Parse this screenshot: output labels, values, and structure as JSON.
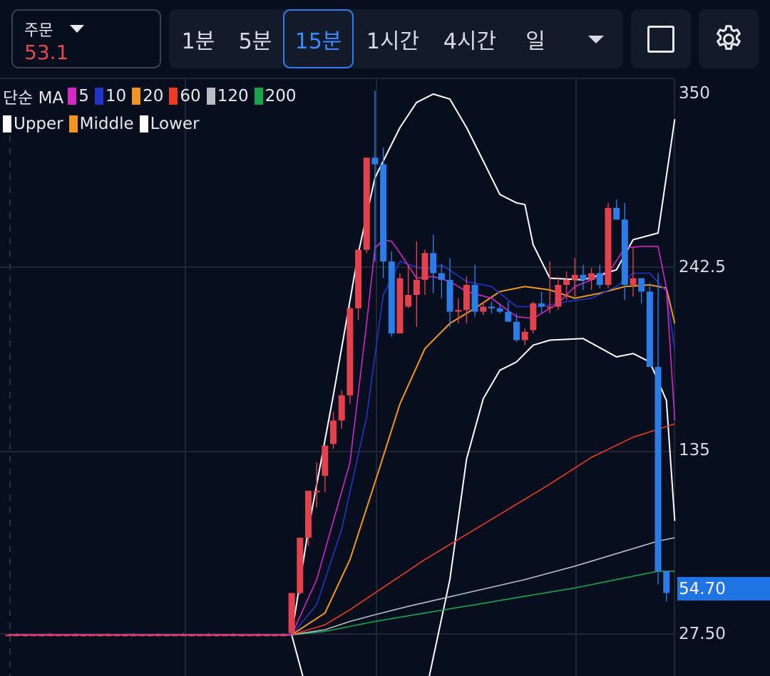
{
  "order": {
    "label": "주문",
    "value": "53.1",
    "value_color": "#e5484d"
  },
  "intervals": [
    {
      "label": "1분",
      "active": false
    },
    {
      "label": "5분",
      "active": false
    },
    {
      "label": "15분",
      "active": true
    },
    {
      "label": "1시간",
      "active": false
    },
    {
      "label": "4시간",
      "active": false
    },
    {
      "label": "일",
      "active": false
    }
  ],
  "toolbar": {
    "dropdown_icon": "chevron-down-icon",
    "square_icon": "square-icon",
    "settings_icon": "gear-icon"
  },
  "legend_ma": {
    "title": "단순 MA",
    "items": [
      {
        "label": "5",
        "color": "#d626c8"
      },
      {
        "label": "10",
        "color": "#2136c8"
      },
      {
        "label": "20",
        "color": "#f0961e"
      },
      {
        "label": "60",
        "color": "#ef3b24"
      },
      {
        "label": "120",
        "color": "#b9bcc2"
      },
      {
        "label": "200",
        "color": "#19a64a"
      }
    ]
  },
  "legend_bb": {
    "items": [
      {
        "label": "Upper",
        "color": "#ffffff"
      },
      {
        "label": "Middle",
        "color": "#f0961e"
      },
      {
        "label": "Lower",
        "color": "#ffffff"
      }
    ]
  },
  "chart_data": {
    "type": "candlestick",
    "ylim": [
      0,
      350
    ],
    "y_ticks": [
      "350",
      "242.5",
      "135",
      "27.50"
    ],
    "last_price": "54.70",
    "colors": {
      "up": "#e5414d",
      "down": "#2b7de9"
    },
    "candles": [
      [
        27,
        27,
        27,
        27
      ],
      [
        27,
        28,
        27,
        27
      ],
      [
        27,
        27,
        26,
        27
      ],
      [
        27,
        27,
        27,
        27
      ],
      [
        27,
        27,
        26,
        27
      ],
      [
        27,
        28,
        27,
        27
      ],
      [
        27,
        27,
        26,
        27
      ],
      [
        27,
        27,
        27,
        27
      ],
      [
        27,
        28,
        27,
        27
      ],
      [
        27,
        27,
        26,
        27
      ],
      [
        27,
        27,
        27,
        27
      ],
      [
        27,
        27,
        26,
        27
      ],
      [
        27,
        28,
        27,
        27
      ],
      [
        27,
        27,
        27,
        27
      ],
      [
        27,
        27,
        26,
        27
      ],
      [
        27,
        28,
        27,
        27
      ],
      [
        27,
        27,
        27,
        27
      ],
      [
        27,
        27,
        26,
        27
      ],
      [
        27,
        28,
        27,
        27
      ],
      [
        27,
        27,
        26,
        27
      ],
      [
        27,
        27,
        27,
        27
      ],
      [
        27,
        28,
        27,
        27
      ],
      [
        27,
        27,
        26,
        27
      ],
      [
        27,
        27,
        27,
        27
      ],
      [
        27,
        28,
        27,
        27
      ],
      [
        27,
        27,
        26,
        27
      ],
      [
        27,
        27,
        27,
        27
      ],
      [
        27,
        28,
        27,
        27
      ],
      [
        27,
        27,
        26,
        27
      ],
      [
        27,
        27,
        27,
        27
      ],
      [
        27,
        28,
        27,
        27
      ],
      [
        27,
        27,
        26,
        27
      ],
      [
        27,
        27,
        27,
        27
      ],
      [
        27,
        28,
        27,
        27
      ],
      [
        28,
        52,
        28,
        52
      ],
      [
        52,
        85,
        51,
        85
      ],
      [
        85,
        113,
        80,
        113
      ],
      [
        113,
        130,
        103,
        113
      ],
      [
        122,
        140,
        112,
        140
      ],
      [
        141,
        160,
        138,
        155
      ],
      [
        155,
        173,
        150,
        170
      ],
      [
        170,
        223,
        165,
        222
      ],
      [
        222,
        257,
        215,
        257
      ],
      [
        257,
        312,
        255,
        312
      ],
      [
        312,
        352,
        250,
        308
      ],
      [
        308,
        318,
        240,
        250
      ],
      [
        250,
        256,
        205,
        207
      ],
      [
        207,
        243,
        207,
        240
      ],
      [
        223,
        248,
        222,
        230
      ],
      [
        230,
        262,
        211,
        239
      ],
      [
        239,
        257,
        230,
        255
      ],
      [
        255,
        266,
        231,
        243
      ],
      [
        243,
        248,
        228,
        239
      ],
      [
        239,
        252,
        211,
        220
      ],
      [
        220,
        228,
        213,
        221
      ],
      [
        221,
        241,
        213,
        236
      ],
      [
        236,
        248,
        217,
        220
      ],
      [
        220,
        226,
        218,
        223
      ],
      [
        223,
        226,
        219,
        222
      ],
      [
        222,
        225,
        219,
        220
      ],
      [
        220,
        226,
        214,
        214
      ],
      [
        214,
        219,
        202,
        203
      ],
      [
        203,
        210,
        200,
        208
      ],
      [
        209,
        226,
        207,
        225
      ],
      [
        225,
        232,
        219,
        223
      ],
      [
        223,
        250,
        219,
        223
      ],
      [
        223,
        241,
        221,
        236
      ],
      [
        236,
        244,
        227,
        239
      ],
      [
        239,
        252,
        229,
        242
      ],
      [
        242,
        248,
        233,
        239
      ],
      [
        239,
        246,
        233,
        243
      ],
      [
        243,
        248,
        234,
        236
      ],
      [
        236,
        285,
        234,
        282
      ],
      [
        282,
        287,
        275,
        275
      ],
      [
        275,
        285,
        227,
        236
      ],
      [
        236,
        258,
        229,
        240
      ],
      [
        240,
        240,
        225,
        232
      ],
      [
        232,
        237,
        187,
        187
      ],
      [
        187,
        243,
        57,
        65
      ],
      [
        65,
        65,
        47,
        52
      ]
    ],
    "ma": {
      "5": [
        [
          0,
          27
        ],
        [
          34,
          27
        ],
        [
          37,
          60
        ],
        [
          41,
          130
        ],
        [
          43,
          213
        ],
        [
          44,
          258
        ],
        [
          45,
          263
        ],
        [
          46,
          262
        ],
        [
          47,
          255
        ],
        [
          49,
          240
        ],
        [
          51,
          241
        ],
        [
          53,
          238
        ],
        [
          55,
          232
        ],
        [
          58,
          228
        ],
        [
          61,
          217
        ],
        [
          63,
          216
        ],
        [
          66,
          225
        ],
        [
          68,
          235
        ],
        [
          70,
          239
        ],
        [
          72,
          243
        ],
        [
          74,
          258
        ],
        [
          76,
          259
        ],
        [
          78,
          259
        ],
        [
          79,
          234
        ],
        [
          80,
          155
        ]
      ],
      "10": [
        [
          0,
          27
        ],
        [
          34,
          27
        ],
        [
          37,
          45
        ],
        [
          40,
          90
        ],
        [
          43,
          157
        ],
        [
          45,
          230
        ],
        [
          47,
          250
        ],
        [
          50,
          245
        ],
        [
          52,
          248
        ],
        [
          55,
          238
        ],
        [
          58,
          235
        ],
        [
          61,
          223
        ],
        [
          64,
          223
        ],
        [
          67,
          226
        ],
        [
          70,
          228
        ],
        [
          73,
          235
        ],
        [
          75,
          243
        ],
        [
          77,
          243
        ],
        [
          79,
          232
        ],
        [
          80,
          197
        ]
      ],
      "20": [
        [
          0,
          27
        ],
        [
          34,
          27
        ],
        [
          38,
          40
        ],
        [
          41,
          72
        ],
        [
          44,
          118
        ],
        [
          47,
          165
        ],
        [
          50,
          198
        ],
        [
          53,
          213
        ],
        [
          56,
          222
        ],
        [
          59,
          232
        ],
        [
          62,
          235
        ],
        [
          65,
          233
        ],
        [
          68,
          228
        ],
        [
          71,
          231
        ],
        [
          74,
          235
        ],
        [
          77,
          236
        ],
        [
          79,
          234
        ],
        [
          80,
          213
        ]
      ],
      "60": [
        [
          0,
          27
        ],
        [
          34,
          27
        ],
        [
          38,
          33
        ],
        [
          41,
          42
        ],
        [
          44,
          52
        ],
        [
          47,
          62
        ],
        [
          50,
          72
        ],
        [
          55,
          87
        ],
        [
          60,
          102
        ],
        [
          65,
          117
        ],
        [
          70,
          133
        ],
        [
          75,
          145
        ],
        [
          80,
          153
        ]
      ],
      "120": [
        [
          0,
          27
        ],
        [
          34,
          27
        ],
        [
          38,
          30
        ],
        [
          41,
          35
        ],
        [
          44,
          39
        ],
        [
          48,
          44
        ],
        [
          55,
          52
        ],
        [
          62,
          60
        ],
        [
          68,
          68
        ],
        [
          74,
          77
        ],
        [
          78,
          83
        ],
        [
          80,
          85
        ]
      ],
      "200": [
        [
          0,
          27
        ],
        [
          34,
          27
        ],
        [
          38,
          29
        ],
        [
          41,
          32
        ],
        [
          44,
          35
        ],
        [
          50,
          40
        ],
        [
          56,
          45
        ],
        [
          62,
          50
        ],
        [
          68,
          55
        ],
        [
          74,
          61
        ],
        [
          78,
          65
        ],
        [
          80,
          65
        ]
      ]
    },
    "bollinger": {
      "upper": [
        [
          34,
          27
        ],
        [
          36,
          90
        ],
        [
          39,
          170
        ],
        [
          42,
          255
        ],
        [
          44,
          300
        ],
        [
          47,
          330
        ],
        [
          49,
          345
        ],
        [
          51,
          350
        ],
        [
          53,
          347
        ],
        [
          55,
          330
        ],
        [
          57,
          310
        ],
        [
          59,
          290
        ],
        [
          61,
          285
        ],
        [
          62,
          284
        ],
        [
          63,
          260
        ],
        [
          65,
          240
        ],
        [
          69,
          239
        ],
        [
          73,
          245
        ],
        [
          75,
          263
        ],
        [
          78,
          267
        ],
        [
          80,
          335
        ]
      ],
      "middle": [
        [
          0,
          27
        ],
        [
          34,
          27
        ],
        [
          38,
          40
        ],
        [
          41,
          72
        ],
        [
          44,
          118
        ],
        [
          47,
          165
        ],
        [
          50,
          198
        ],
        [
          53,
          213
        ],
        [
          56,
          222
        ],
        [
          59,
          232
        ],
        [
          62,
          235
        ],
        [
          65,
          233
        ],
        [
          68,
          228
        ],
        [
          71,
          231
        ],
        [
          74,
          235
        ],
        [
          77,
          236
        ],
        [
          79,
          234
        ],
        [
          80,
          213
        ]
      ],
      "lower": [
        [
          34,
          27
        ],
        [
          36,
          -10
        ],
        [
          50,
          -10
        ],
        [
          53,
          60
        ],
        [
          55,
          132
        ],
        [
          57,
          168
        ],
        [
          59,
          185
        ],
        [
          61,
          190
        ],
        [
          63,
          200
        ],
        [
          65,
          203
        ],
        [
          69,
          204
        ],
        [
          73,
          193
        ],
        [
          75,
          195
        ],
        [
          77,
          190
        ],
        [
          79,
          167
        ],
        [
          80,
          95
        ]
      ]
    }
  }
}
